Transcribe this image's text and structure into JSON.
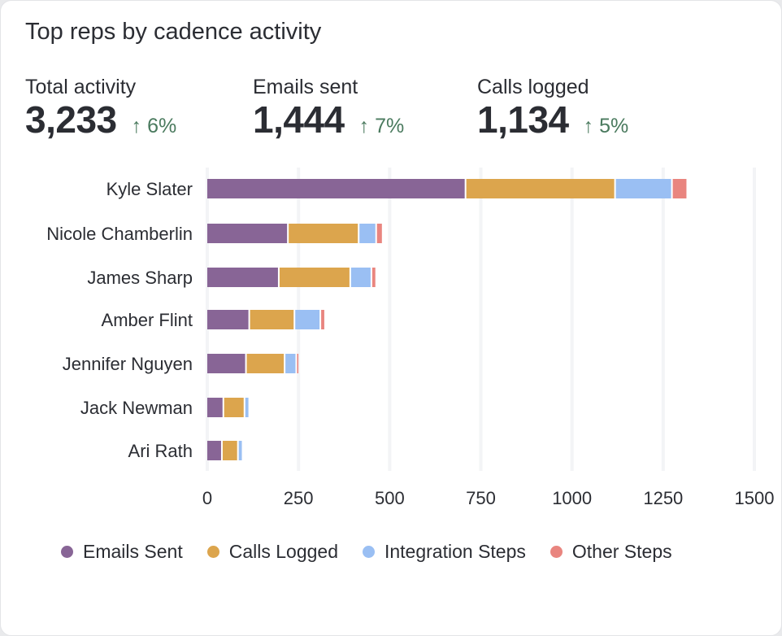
{
  "title": "Top reps by cadence activity",
  "metrics": [
    {
      "label": "Total activity",
      "value": "3,233",
      "change": "↑ 6%",
      "trend": "up"
    },
    {
      "label": "Emails sent",
      "value": "1,444",
      "change": "↑ 7%",
      "trend": "up"
    },
    {
      "label": "Calls logged",
      "value": "1,134",
      "change": "↑ 5%",
      "trend": "up"
    }
  ],
  "chart_data": {
    "type": "bar",
    "orientation": "horizontal",
    "stacked": true,
    "categories": [
      "Kyle Slater",
      "Nicole Chamberlin",
      "James Sharp",
      "Amber Flint",
      "Jennifer Nguyen",
      "Jack Newman",
      "Ari Rath"
    ],
    "series": [
      {
        "name": "Emails Sent",
        "color": "#886596",
        "values": [
          708,
          221,
          196,
          115,
          106,
          44,
          40
        ]
      },
      {
        "name": "Calls Logged",
        "color": "#dca54d",
        "values": [
          410,
          194,
          196,
          124,
          106,
          58,
          44
        ]
      },
      {
        "name": "Integration Steps",
        "color": "#9abff3",
        "values": [
          156,
          48,
          58,
          71,
          32,
          13,
          13
        ]
      },
      {
        "name": "Other Steps",
        "color": "#e9857f",
        "values": [
          42,
          18,
          13,
          13,
          8,
          0,
          0
        ]
      }
    ],
    "xlim": [
      0,
      1500
    ],
    "xticks": [
      "0",
      "250",
      "500",
      "750",
      "1000",
      "1250",
      "1500"
    ],
    "grid": true,
    "legend_position": "bottom"
  }
}
